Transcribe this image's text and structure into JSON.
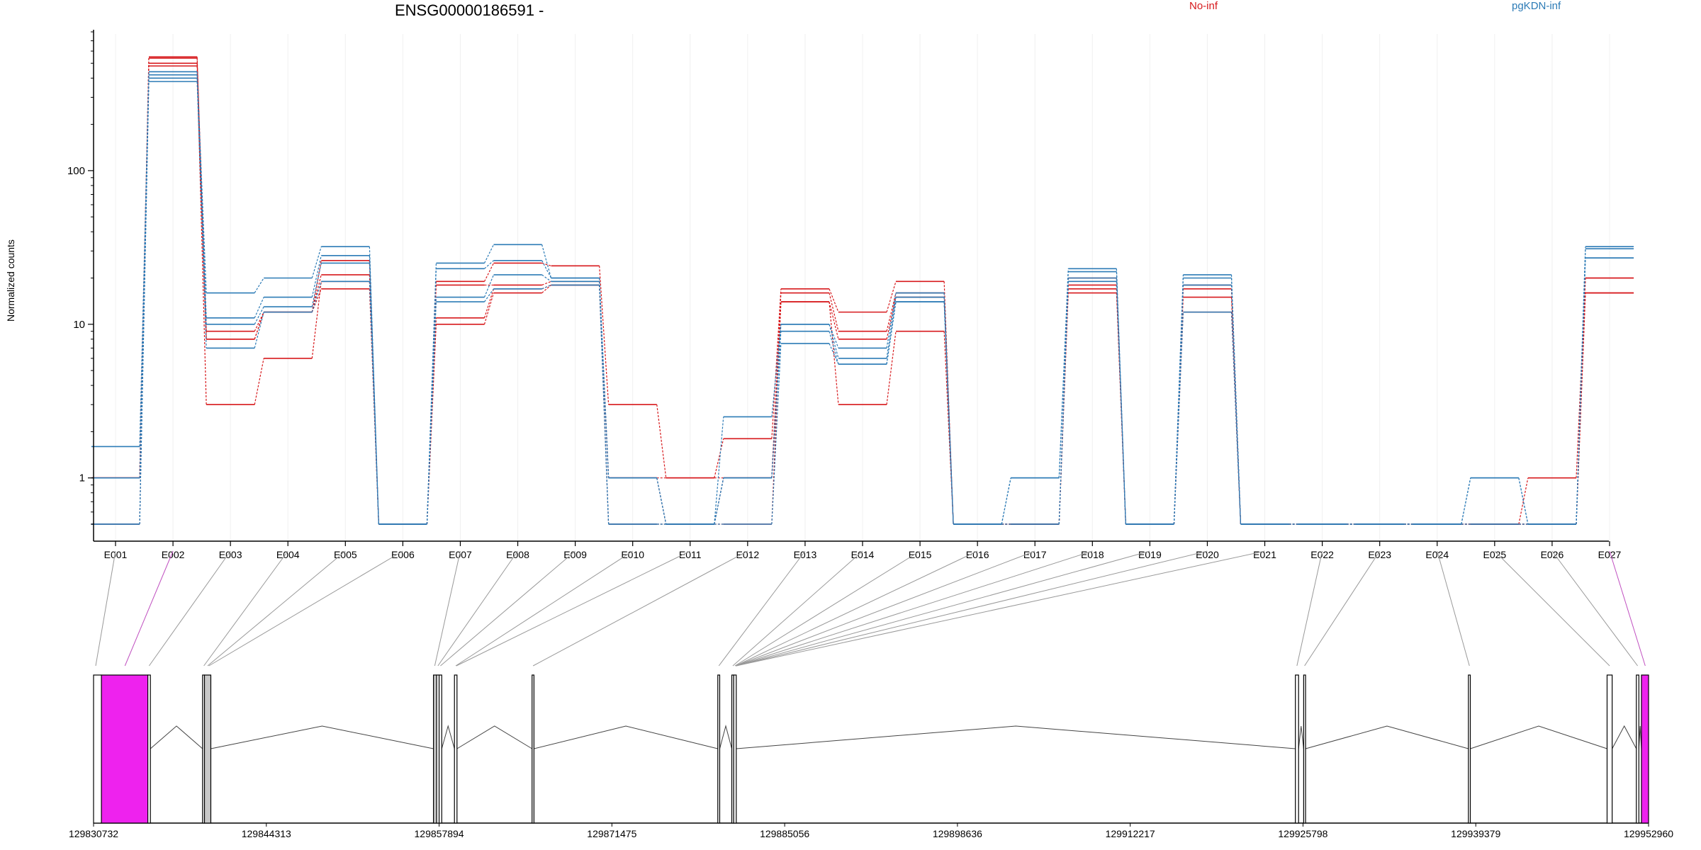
{
  "chart_data": {
    "type": "line",
    "title": "ENSG00000186591 -",
    "ylabel": "Normalized counts",
    "xlabel": "",
    "y_scale": "log",
    "ylim": [
      0.5,
      800
    ],
    "yticks": [
      {
        "value": 1,
        "label": "1"
      },
      {
        "value": 10,
        "label": "10"
      },
      {
        "value": 100,
        "label": "100"
      }
    ],
    "grid": "vertical-light",
    "legend_placement": "top",
    "colors": {
      "No-inf": "#d7191c",
      "pgKDN-inf": "#2c7bb6",
      "highlight": "#ee22ee"
    },
    "categories": [
      "E001",
      "E002",
      "E003",
      "E004",
      "E005",
      "E006",
      "E007",
      "E008",
      "E009",
      "E010",
      "E011",
      "E012",
      "E013",
      "E014",
      "E015",
      "E016",
      "E017",
      "E018",
      "E019",
      "E020",
      "E021",
      "E022",
      "E023",
      "E024",
      "E025",
      "E026",
      "E027"
    ],
    "series": [
      {
        "name": "No-inf",
        "group": "No-inf",
        "values": [
          1,
          550,
          9,
          12,
          26,
          0.5,
          19,
          25,
          24,
          3,
          1,
          1.8,
          17,
          12,
          19,
          0.5,
          0.5,
          18,
          0.5,
          18,
          0.5,
          0.5,
          0.5,
          0.5,
          0.5,
          1,
          20
        ]
      },
      {
        "group": "No-inf",
        "values": [
          1,
          500,
          8,
          12,
          21,
          0.5,
          18,
          18,
          19,
          1,
          1,
          1,
          16,
          9,
          16,
          0.5,
          0.5,
          20,
          0.5,
          17,
          0.5,
          0.5,
          0.5,
          0.5,
          0.5,
          0.5,
          20
        ]
      },
      {
        "group": "No-inf",
        "values": [
          1,
          480,
          3,
          6,
          19,
          0.5,
          11,
          17,
          18,
          1,
          0.5,
          1,
          14,
          8,
          15,
          0.5,
          0.5,
          17,
          0.5,
          15,
          0.5,
          0.5,
          0.5,
          0.5,
          0.5,
          0.5,
          16
        ]
      },
      {
        "group": "No-inf",
        "values": [
          0.5,
          540,
          8,
          12,
          17,
          0.5,
          10,
          16,
          18,
          0.5,
          0.5,
          0.5,
          14,
          3,
          9,
          0.5,
          0.5,
          16,
          0.5,
          12,
          0.5,
          0.5,
          0.5,
          0.5,
          0.5,
          0.5,
          16
        ]
      },
      {
        "name": "pgKDN-inf",
        "group": "pgKDN-inf",
        "values": [
          1.6,
          440,
          16,
          20,
          32,
          0.5,
          25,
          33,
          20,
          1,
          0.5,
          2.5,
          10,
          7,
          16,
          0.5,
          1,
          23,
          0.5,
          21,
          0.5,
          0.5,
          0.5,
          0.5,
          1,
          0.5,
          32
        ]
      },
      {
        "group": "pgKDN-inf",
        "values": [
          1,
          420,
          11,
          15,
          28,
          0.5,
          23,
          26,
          20,
          1,
          0.5,
          1,
          10,
          6,
          15,
          0.5,
          1,
          22,
          0.5,
          20,
          0.5,
          0.5,
          0.5,
          0.5,
          1,
          0.5,
          31
        ]
      },
      {
        "group": "pgKDN-inf",
        "values": [
          0.5,
          400,
          10,
          13,
          25,
          0.5,
          15,
          21,
          19,
          0.5,
          0.5,
          1,
          9,
          5.5,
          14,
          0.5,
          0.5,
          20,
          0.5,
          18,
          0.5,
          0.5,
          0.5,
          0.5,
          0.5,
          0.5,
          27
        ]
      },
      {
        "group": "pgKDN-inf",
        "values": [
          0.5,
          380,
          7,
          12,
          19,
          0.5,
          14,
          17,
          18,
          0.5,
          0.5,
          0.5,
          7.5,
          5.5,
          14,
          0.5,
          0.5,
          19,
          0.5,
          12,
          0.5,
          0.5,
          0.5,
          0.5,
          0.5,
          0.5,
          27
        ]
      }
    ],
    "exon_highlight": [
      false,
      true,
      false,
      false,
      false,
      false,
      false,
      false,
      false,
      false,
      false,
      false,
      false,
      false,
      false,
      false,
      false,
      false,
      false,
      false,
      false,
      false,
      false,
      false,
      false,
      false,
      true
    ],
    "gene_model": {
      "coordinate_ticks": [
        129830732,
        129844313,
        129857894,
        129871475,
        129885056,
        129898636,
        129912217,
        129925798,
        129939379,
        129952960
      ],
      "exons": [
        {
          "start": 129830732,
          "end": 129831350
        },
        {
          "start": 129831350,
          "end": 129835000
        },
        {
          "start": 129835000,
          "end": 129835200
        },
        {
          "start": 129839300,
          "end": 129839450
        },
        {
          "start": 129839450,
          "end": 129839950
        },
        {
          "start": 129857450,
          "end": 129857700
        },
        {
          "start": 129857700,
          "end": 129857894
        },
        {
          "start": 129857894,
          "end": 129858100
        },
        {
          "start": 129859100,
          "end": 129859300
        },
        {
          "start": 129865200,
          "end": 129865350
        },
        {
          "start": 129879800,
          "end": 129879950
        },
        {
          "start": 129880900,
          "end": 129881050
        },
        {
          "start": 129881050,
          "end": 129881250
        },
        {
          "start": 129925200,
          "end": 129925450
        },
        {
          "start": 129925850,
          "end": 129926000
        },
        {
          "start": 129938800,
          "end": 129938950
        },
        {
          "start": 129949700,
          "end": 129950100
        },
        {
          "start": 129952000,
          "end": 129952200
        },
        {
          "start": 129952400,
          "end": 129952960
        }
      ]
    }
  }
}
